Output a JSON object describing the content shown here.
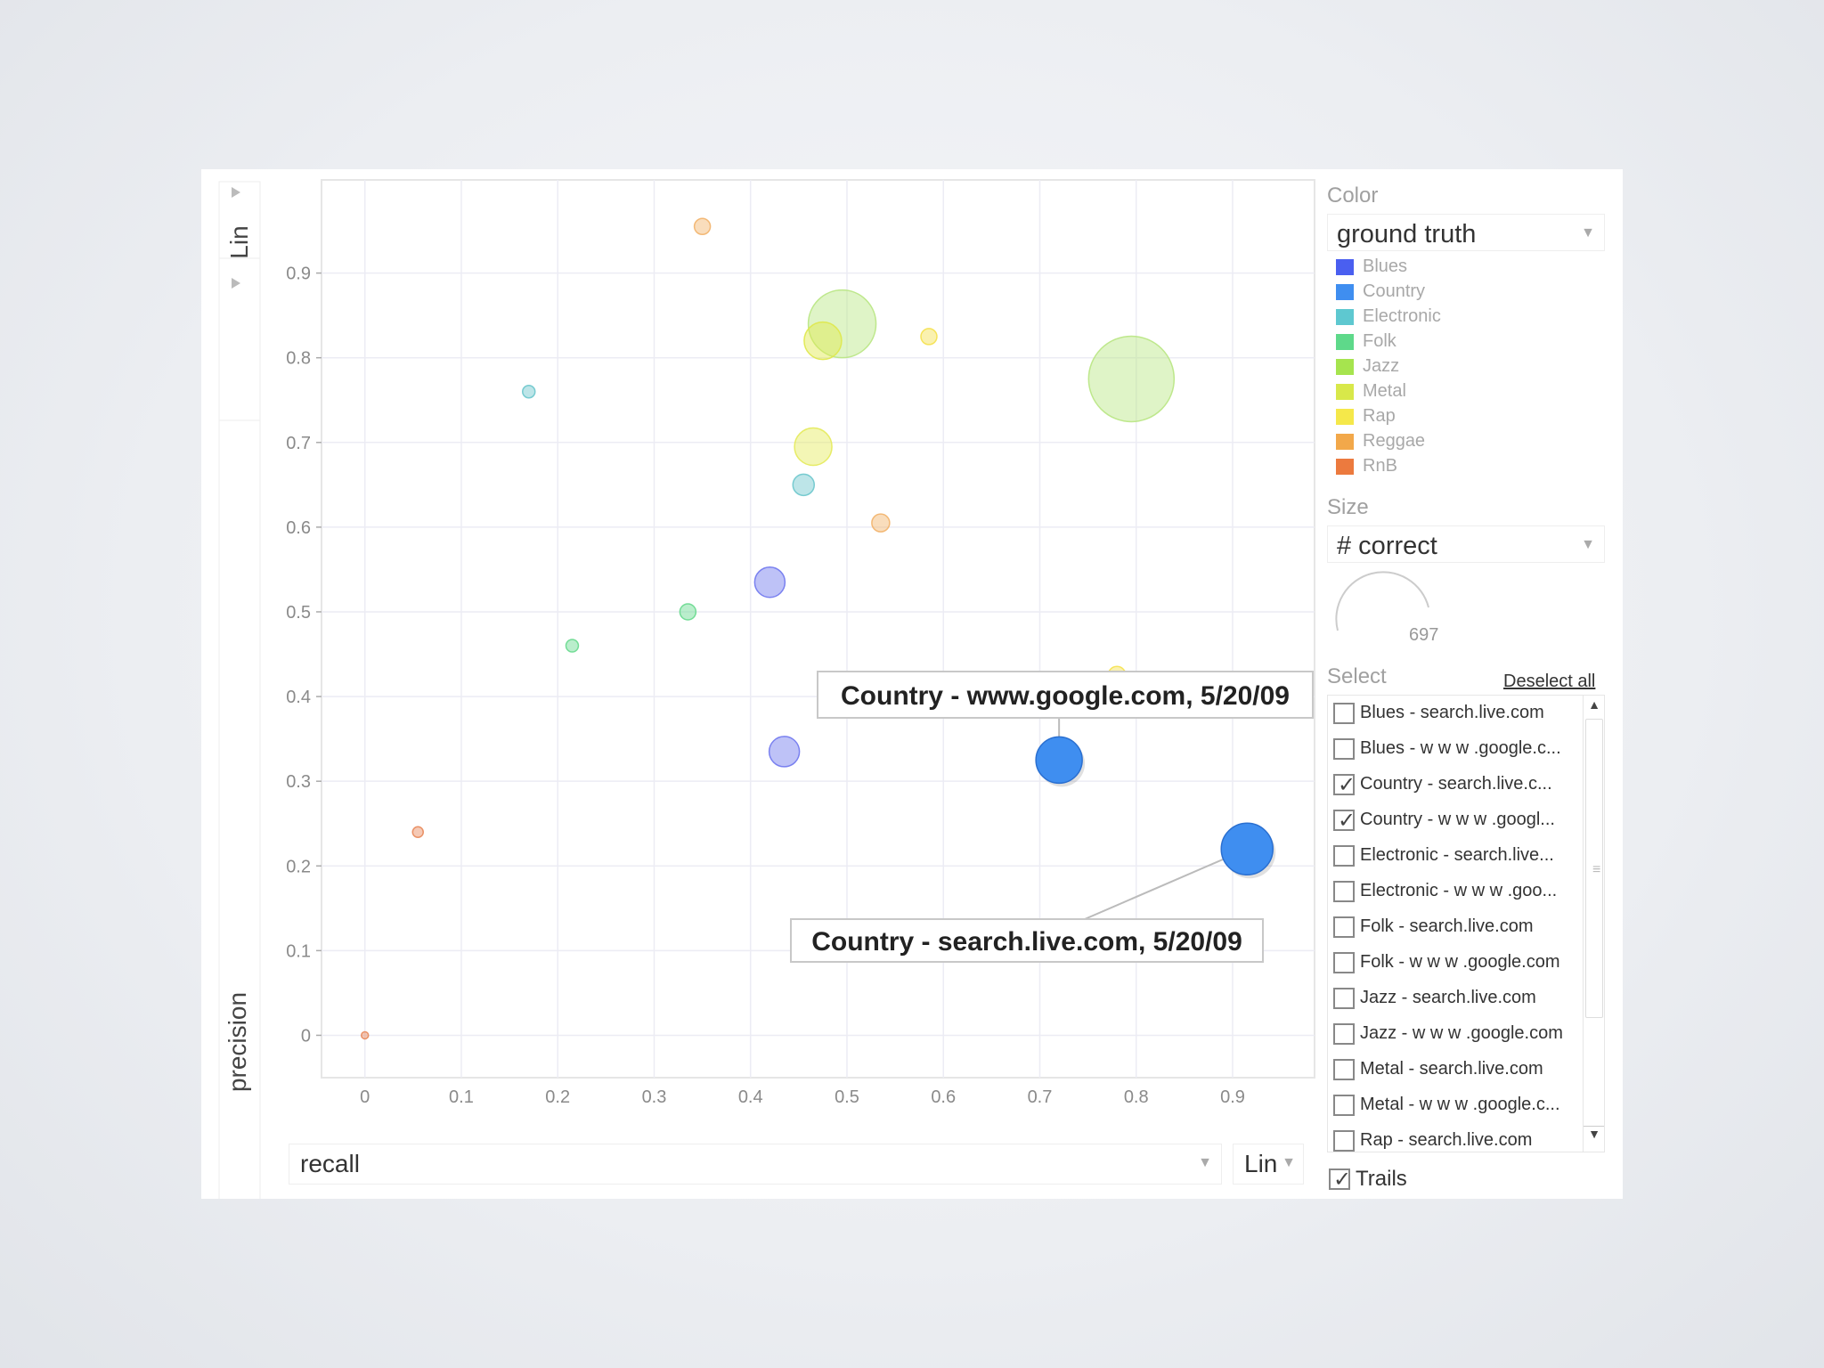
{
  "chart_data": {
    "type": "scatter",
    "xlabel": "recall",
    "ylabel": "precision",
    "xlim": [
      -0.045,
      0.985
    ],
    "ylim": [
      -0.05,
      1.01
    ],
    "x_ticks": [
      "0",
      "0.1",
      "0.2",
      "0.3",
      "0.4",
      "0.5",
      "0.6",
      "0.7",
      "0.8",
      "0.9"
    ],
    "y_ticks": [
      "0",
      "0.1",
      "0.2",
      "0.3",
      "0.4",
      "0.5",
      "0.6",
      "0.7",
      "0.8",
      "0.9"
    ],
    "grid": true,
    "y_scale_label": "Lin",
    "points": [
      {
        "x": 0.35,
        "y": 0.955,
        "r": 9,
        "color": "#f2b36a"
      },
      {
        "x": 0.495,
        "y": 0.84,
        "r": 38,
        "color": "#b8e682"
      },
      {
        "x": 0.475,
        "y": 0.82,
        "r": 21,
        "color": "#dfe84a"
      },
      {
        "x": 0.585,
        "y": 0.825,
        "r": 9,
        "color": "#f5e14d"
      },
      {
        "x": 0.795,
        "y": 0.775,
        "r": 48,
        "color": "#b8e682"
      },
      {
        "x": 0.17,
        "y": 0.76,
        "r": 7,
        "color": "#6cc6cc"
      },
      {
        "x": 0.465,
        "y": 0.695,
        "r": 21,
        "color": "#e4ea5a"
      },
      {
        "x": 0.455,
        "y": 0.65,
        "r": 12,
        "color": "#6cc6cc"
      },
      {
        "x": 0.535,
        "y": 0.605,
        "r": 10,
        "color": "#f2b36a"
      },
      {
        "x": 0.42,
        "y": 0.535,
        "r": 17,
        "color": "#6f77ee"
      },
      {
        "x": 0.335,
        "y": 0.5,
        "r": 9,
        "color": "#67d98d"
      },
      {
        "x": 0.215,
        "y": 0.46,
        "r": 7,
        "color": "#67d98d"
      },
      {
        "x": 0.78,
        "y": 0.425,
        "r": 10,
        "color": "#f5e14d"
      },
      {
        "x": 0.435,
        "y": 0.335,
        "r": 17,
        "color": "#6f77ee"
      },
      {
        "x": 0.055,
        "y": 0.24,
        "r": 6,
        "color": "#e8885a"
      },
      {
        "x": 0.0,
        "y": 0.0,
        "r": 4,
        "color": "#e8885a"
      }
    ],
    "highlighted": [
      {
        "x": 0.72,
        "y": 0.325,
        "r": 26,
        "color": "#3f8ef0",
        "label": "Country - www.google.com, 5/20/09"
      },
      {
        "x": 0.915,
        "y": 0.22,
        "r": 29,
        "color": "#3f8ef0",
        "label": "Country - search.live.com, 5/20/09"
      }
    ]
  },
  "controls": {
    "x_axis_value": "recall",
    "x_scale": "Lin",
    "y_scale": "Lin"
  },
  "color_panel": {
    "title": "Color",
    "value": "ground truth",
    "legend": [
      {
        "label": "Blues",
        "color": "#4a5ff0"
      },
      {
        "label": "Country",
        "color": "#3f8ef0"
      },
      {
        "label": "Electronic",
        "color": "#5ec8d0"
      },
      {
        "label": "Folk",
        "color": "#5ed98a"
      },
      {
        "label": "Jazz",
        "color": "#a6e44e"
      },
      {
        "label": "Metal",
        "color": "#d8e84a"
      },
      {
        "label": "Rap",
        "color": "#f5e84a"
      },
      {
        "label": "Reggae",
        "color": "#f2a84a"
      },
      {
        "label": "RnB",
        "color": "#ec7a3e"
      }
    ]
  },
  "size_panel": {
    "title": "Size",
    "value": "# correct",
    "max": "697"
  },
  "select_panel": {
    "title": "Select",
    "deselect_label": "Deselect all",
    "items": [
      {
        "label": "Blues - search.live.com",
        "checked": false
      },
      {
        "label": "Blues - w w w .google.c...",
        "checked": false
      },
      {
        "label": "Country - search.live.c...",
        "checked": true
      },
      {
        "label": "Country - w w w .googl...",
        "checked": true
      },
      {
        "label": "Electronic - search.live...",
        "checked": false
      },
      {
        "label": "Electronic - w w w .goo...",
        "checked": false
      },
      {
        "label": "Folk - search.live.com",
        "checked": false
      },
      {
        "label": "Folk - w w w .google.com",
        "checked": false
      },
      {
        "label": "Jazz - search.live.com",
        "checked": false
      },
      {
        "label": "Jazz - w w w .google.com",
        "checked": false
      },
      {
        "label": "Metal - search.live.com",
        "checked": false
      },
      {
        "label": "Metal - w w w .google.c...",
        "checked": false
      },
      {
        "label": "Rap - search.live.com",
        "checked": false
      }
    ],
    "trails_label": "Trails",
    "trails_checked": true
  }
}
